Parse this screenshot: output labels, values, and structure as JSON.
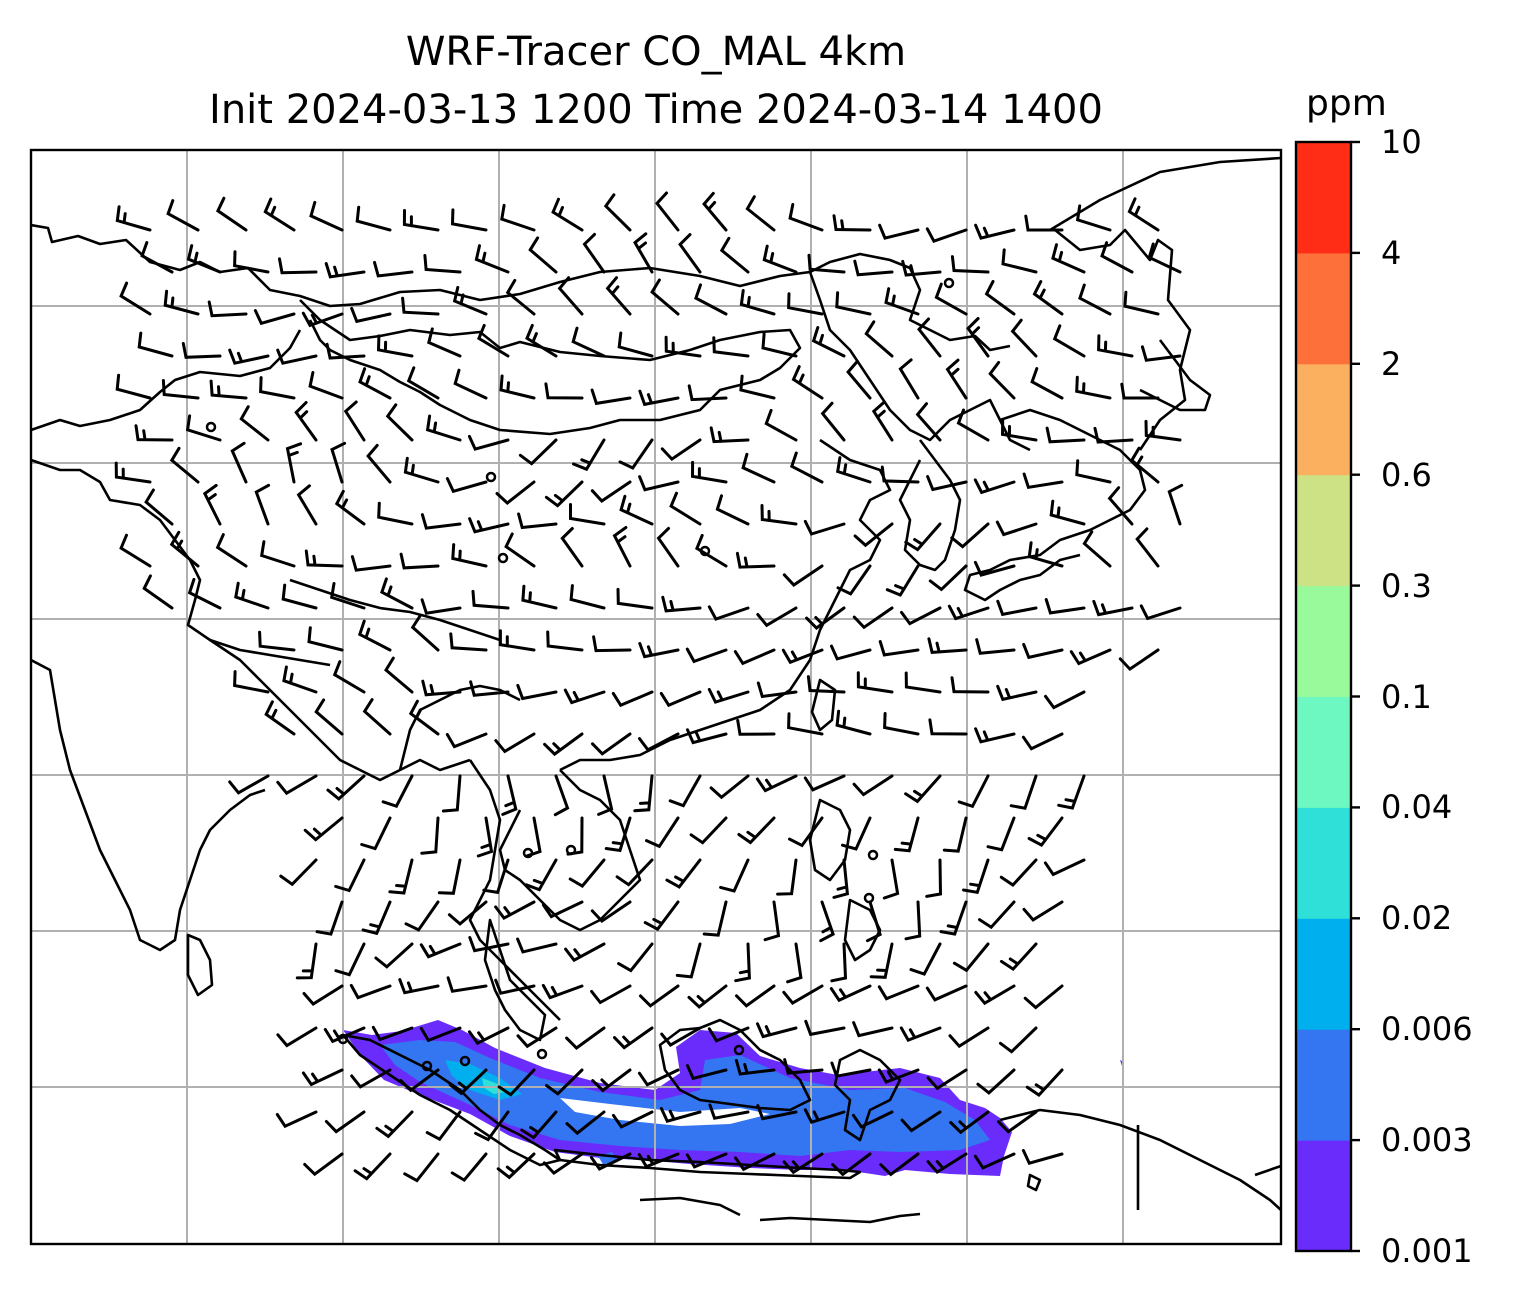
{
  "figure": {
    "title_line1": "WRF-Tracer CO_MAL 4km",
    "title_line2": "Init 2024-03-13 1200 Time 2024-03-14 1400"
  },
  "colorbar": {
    "unit": "ppm",
    "levels": [
      "0.001",
      "0.003",
      "0.006",
      "0.02",
      "0.04",
      "0.1",
      "0.3",
      "0.6",
      "2",
      "4",
      "10"
    ],
    "colors": [
      "#6a2cfb",
      "#3475f2",
      "#00b0ee",
      "#2fe0d8",
      "#6cf8c0",
      "#98fa9b",
      "#cde285",
      "#fbb060",
      "#fe7039",
      "#ff2c16"
    ]
  },
  "chart_data": {
    "type": "heatmap",
    "variable": "CO_MAL tracer",
    "unit": "ppm",
    "contour_levels": [
      0.001,
      0.003,
      0.006,
      0.02,
      0.04,
      0.1,
      0.3,
      0.6,
      2,
      4,
      10
    ],
    "overlay": "wind barbs",
    "grid": true,
    "legend_placement": "right"
  }
}
